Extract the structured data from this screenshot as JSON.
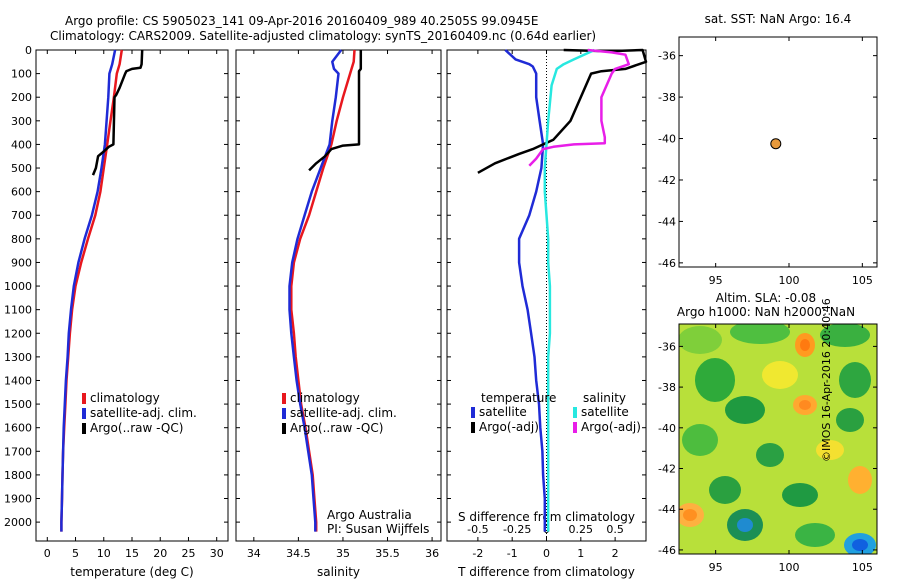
{
  "header": {
    "line1": "Argo profile: CS 5905023_141 09-Apr-2016 20160409_989 40.2505S 99.0945E",
    "line2": "Climatology: CARS2009. Satellite-adjusted climatology: synTS_20160409.nc (0.64d earlier)"
  },
  "colors": {
    "climatology": "#e8171e",
    "satellite": "#1f2bd6",
    "argo": "#000000",
    "salinity_satellite": "#27e8e0",
    "salinity_argo": "#e81ee8",
    "marker": "#e89a3c"
  },
  "credits": {
    "org": "Argo Australia",
    "pi": "PI: Susan Wijffels",
    "side": "©IMOS 16-Apr-2016 20:40:46"
  },
  "chart_data": [
    {
      "type": "line",
      "xlabel": "temperature (deg C)",
      "xlim": [
        -2,
        32
      ],
      "ylim": [
        2080,
        0
      ],
      "x_ticks": [
        0,
        5,
        10,
        15,
        20,
        25,
        30
      ],
      "y_ticks": [
        0,
        100,
        200,
        300,
        400,
        500,
        600,
        700,
        800,
        900,
        1000,
        1100,
        1200,
        1300,
        1400,
        1500,
        1600,
        1700,
        1800,
        1900,
        2000
      ],
      "legend": [
        "climatology",
        "satellite-adj. clim.",
        "Argo(..raw -QC)"
      ],
      "series": [
        {
          "name": "climatology",
          "color": "#e8171e",
          "points": [
            [
              13.2,
              0
            ],
            [
              12.8,
              60
            ],
            [
              12.3,
              100
            ],
            [
              11.8,
              200
            ],
            [
              11.2,
              300
            ],
            [
              10.6,
              400
            ],
            [
              10.0,
              500
            ],
            [
              9.4,
              600
            ],
            [
              8.5,
              700
            ],
            [
              7.2,
              800
            ],
            [
              6.0,
              900
            ],
            [
              5.0,
              1000
            ],
            [
              4.4,
              1100
            ],
            [
              4.0,
              1200
            ],
            [
              3.7,
              1300
            ],
            [
              3.4,
              1400
            ],
            [
              3.2,
              1500
            ],
            [
              3.0,
              1600
            ],
            [
              2.8,
              1700
            ],
            [
              2.7,
              1800
            ],
            [
              2.6,
              1900
            ],
            [
              2.5,
              2000
            ],
            [
              2.5,
              2040
            ]
          ]
        },
        {
          "name": "satellite-adj. clim.",
          "color": "#1f2bd6",
          "points": [
            [
              12.0,
              0
            ],
            [
              11.5,
              60
            ],
            [
              11.0,
              100
            ],
            [
              10.8,
              200
            ],
            [
              10.5,
              300
            ],
            [
              10.2,
              400
            ],
            [
              9.6,
              500
            ],
            [
              8.9,
              600
            ],
            [
              7.9,
              700
            ],
            [
              6.6,
              800
            ],
            [
              5.5,
              900
            ],
            [
              4.7,
              1000
            ],
            [
              4.2,
              1100
            ],
            [
              3.8,
              1200
            ],
            [
              3.6,
              1300
            ],
            [
              3.3,
              1400
            ],
            [
              3.1,
              1500
            ],
            [
              2.9,
              1600
            ],
            [
              2.8,
              1700
            ],
            [
              2.7,
              1800
            ],
            [
              2.6,
              1900
            ],
            [
              2.5,
              2000
            ],
            [
              2.5,
              2040
            ]
          ]
        },
        {
          "name": "Argo(..raw -QC)",
          "color": "#000000",
          "points": [
            [
              16.8,
              0
            ],
            [
              16.7,
              60
            ],
            [
              16.5,
              75
            ],
            [
              15.0,
              80
            ],
            [
              14.0,
              90
            ],
            [
              13.8,
              100
            ],
            [
              12.8,
              160
            ],
            [
              12.2,
              190
            ],
            [
              11.9,
              200
            ],
            [
              11.7,
              400
            ],
            [
              10.9,
              410
            ],
            [
              10.0,
              430
            ],
            [
              9.5,
              440
            ],
            [
              9.0,
              450
            ],
            [
              8.6,
              500
            ],
            [
              8.1,
              530
            ]
          ]
        }
      ]
    },
    {
      "type": "line",
      "xlabel": "salinity",
      "xlim": [
        33.8,
        36.1
      ],
      "ylim": [
        2080,
        0
      ],
      "x_ticks": [
        34,
        34.5,
        35,
        35.5,
        36
      ],
      "legend": [
        "climatology",
        "satellite-adj. clim.",
        "Argo(..raw -QC)"
      ],
      "series": [
        {
          "name": "climatology",
          "color": "#e8171e",
          "points": [
            [
              35.13,
              0
            ],
            [
              35.12,
              50
            ],
            [
              35.08,
              100
            ],
            [
              35.0,
              200
            ],
            [
              34.93,
              300
            ],
            [
              34.87,
              400
            ],
            [
              34.78,
              500
            ],
            [
              34.7,
              600
            ],
            [
              34.62,
              700
            ],
            [
              34.52,
              800
            ],
            [
              34.45,
              900
            ],
            [
              34.42,
              1000
            ],
            [
              34.42,
              1100
            ],
            [
              34.45,
              1200
            ],
            [
              34.47,
              1300
            ],
            [
              34.5,
              1400
            ],
            [
              34.53,
              1500
            ],
            [
              34.58,
              1600
            ],
            [
              34.62,
              1700
            ],
            [
              34.66,
              1800
            ],
            [
              34.68,
              1900
            ],
            [
              34.7,
              2000
            ],
            [
              34.7,
              2040
            ]
          ]
        },
        {
          "name": "satellite-adj. clim.",
          "color": "#1f2bd6",
          "points": [
            [
              34.98,
              0
            ],
            [
              34.88,
              50
            ],
            [
              34.9,
              80
            ],
            [
              34.95,
              100
            ],
            [
              34.92,
              200
            ],
            [
              34.88,
              300
            ],
            [
              34.85,
              400
            ],
            [
              34.75,
              500
            ],
            [
              34.65,
              600
            ],
            [
              34.57,
              700
            ],
            [
              34.49,
              800
            ],
            [
              34.43,
              900
            ],
            [
              34.4,
              1000
            ],
            [
              34.4,
              1100
            ],
            [
              34.42,
              1200
            ],
            [
              34.45,
              1300
            ],
            [
              34.48,
              1400
            ],
            [
              34.52,
              1500
            ],
            [
              34.57,
              1600
            ],
            [
              34.61,
              1700
            ],
            [
              34.65,
              1800
            ],
            [
              34.67,
              1900
            ],
            [
              34.69,
              2000
            ],
            [
              34.69,
              2040
            ]
          ]
        },
        {
          "name": "Argo(..raw -QC)",
          "color": "#000000",
          "points": [
            [
              35.2,
              0
            ],
            [
              35.2,
              80
            ],
            [
              35.18,
              90
            ],
            [
              35.18,
              400
            ],
            [
              35.0,
              405
            ],
            [
              34.87,
              420
            ],
            [
              34.8,
              450
            ],
            [
              34.7,
              480
            ],
            [
              34.62,
              510
            ]
          ]
        }
      ]
    },
    {
      "type": "line",
      "xlabel": "T difference from climatology",
      "xlabel_top": "S difference from climatology",
      "xlim": [
        -2.9,
        2.9
      ],
      "ylim": [
        2080,
        0
      ],
      "x_ticks": [
        -2,
        -1,
        0,
        1,
        2
      ],
      "x_ticks_top": [
        "-0.5",
        "-0.25",
        "0",
        "0.25",
        "0.5"
      ],
      "legend_titles": [
        "temperature",
        "salinity"
      ],
      "legend": [
        "satellite",
        "Argo(-adj)",
        "satellite",
        "Argo(-adj)"
      ],
      "series": [
        {
          "name": "satellite",
          "color": "#1f2bd6",
          "points": [
            [
              -1.2,
              0
            ],
            [
              -0.9,
              40
            ],
            [
              -0.7,
              50
            ],
            [
              -0.5,
              60
            ],
            [
              -0.4,
              70
            ],
            [
              -0.3,
              100
            ],
            [
              -0.3,
              200
            ],
            [
              -0.2,
              300
            ],
            [
              -0.1,
              400
            ],
            [
              -0.15,
              500
            ],
            [
              -0.3,
              600
            ],
            [
              -0.5,
              700
            ],
            [
              -0.8,
              800
            ],
            [
              -0.8,
              900
            ],
            [
              -0.7,
              1000
            ],
            [
              -0.55,
              1100
            ],
            [
              -0.45,
              1200
            ],
            [
              -0.35,
              1300
            ],
            [
              -0.3,
              1400
            ],
            [
              -0.22,
              1500
            ],
            [
              -0.18,
              1600
            ],
            [
              -0.12,
              1700
            ],
            [
              -0.1,
              1800
            ],
            [
              -0.05,
              1900
            ],
            [
              -0.05,
              2000
            ],
            [
              -0.05,
              2040
            ]
          ]
        },
        {
          "name": "Argo(-adj)",
          "color": "#000000",
          "points": [
            [
              0.5,
              0
            ],
            [
              1.8,
              5
            ],
            [
              2.8,
              0
            ],
            [
              2.9,
              50
            ],
            [
              2.3,
              80
            ],
            [
              1.6,
              90
            ],
            [
              1.3,
              100
            ],
            [
              0.7,
              300
            ],
            [
              0.2,
              380
            ],
            [
              -0.1,
              400
            ],
            [
              -0.4,
              420
            ],
            [
              -0.8,
              440
            ],
            [
              -1.5,
              480
            ],
            [
              -2.0,
              520
            ]
          ]
        },
        {
          "name": "satellite",
          "color": "#27e8e0",
          "points": [
            [
              1.4,
              0
            ],
            [
              0.8,
              40
            ],
            [
              0.5,
              60
            ],
            [
              0.3,
              80
            ],
            [
              0.15,
              150
            ],
            [
              0.05,
              300
            ],
            [
              0.0,
              400
            ],
            [
              -0.05,
              500
            ],
            [
              -0.05,
              600
            ],
            [
              0.0,
              700
            ],
            [
              0.05,
              800
            ],
            [
              0.05,
              900
            ],
            [
              0.1,
              1000
            ],
            [
              0.1,
              1100
            ],
            [
              0.1,
              1200
            ],
            [
              0.05,
              1300
            ],
            [
              0.05,
              1400
            ],
            [
              0.05,
              1500
            ],
            [
              0.05,
              1600
            ],
            [
              0.05,
              1700
            ],
            [
              0.05,
              1800
            ],
            [
              0.05,
              1900
            ],
            [
              0.05,
              2000
            ],
            [
              0.05,
              2040
            ]
          ]
        },
        {
          "name": "Argo(-adj)",
          "color": "#e81ee8",
          "points": [
            [
              1.2,
              0
            ],
            [
              1.9,
              10
            ],
            [
              2.3,
              20
            ],
            [
              2.4,
              60
            ],
            [
              2.0,
              80
            ],
            [
              1.9,
              100
            ],
            [
              1.6,
              200
            ],
            [
              1.6,
              300
            ],
            [
              1.7,
              370
            ],
            [
              1.7,
              395
            ],
            [
              0.8,
              400
            ],
            [
              0.2,
              410
            ],
            [
              -0.1,
              420
            ],
            [
              -0.3,
              460
            ],
            [
              -0.5,
              490
            ]
          ]
        }
      ]
    },
    {
      "type": "scatter",
      "title": "sat. SST: NaN Argo: 16.4",
      "xlim": [
        92.5,
        106
      ],
      "ylim": [
        -46.2,
        -35.1
      ],
      "x_ticks": [
        95,
        100,
        105
      ],
      "y_ticks": [
        -36,
        -38,
        -40,
        -42,
        -44,
        -46
      ],
      "points": [
        [
          99.1,
          -40.25
        ]
      ]
    },
    {
      "type": "heatmap",
      "title_line1": "Altim. SLA: -0.08",
      "title_line2": "Argo h1000: NaN h2000: NaN",
      "xlim": [
        92.5,
        106
      ],
      "ylim": [
        -46.2,
        -34.9
      ],
      "x_ticks": [
        95,
        100,
        105
      ],
      "y_ticks": [
        -36,
        -38,
        -40,
        -42,
        -44,
        -46
      ]
    }
  ]
}
